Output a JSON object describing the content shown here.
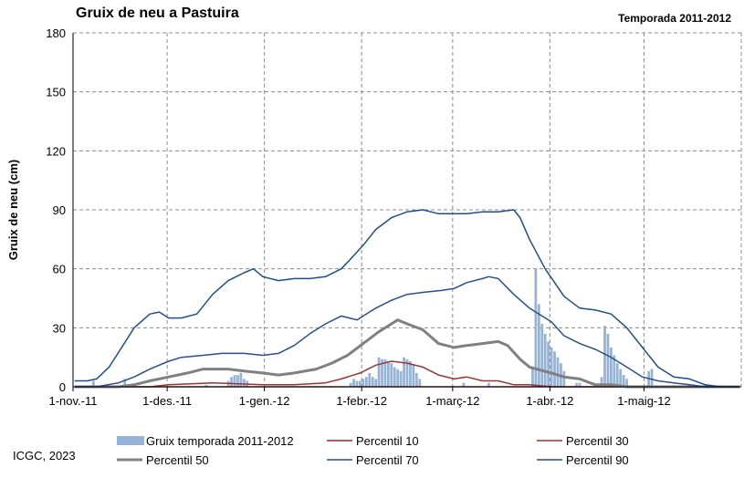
{
  "chart_data": {
    "type": "line",
    "title": "Gruix de neu a Pastuira",
    "subtitle": "Temporada 2011-2012",
    "ylabel": "Gruix de neu (cm)",
    "xlabel": "",
    "ylim": [
      0,
      180
    ],
    "yticks": [
      0,
      30,
      60,
      90,
      120,
      150,
      180
    ],
    "x_start": "2011-11-01",
    "x_end": "2012-05-31",
    "x_tick_labels": [
      "1-nov.-11",
      "1-des.-11",
      "1-gen.-12",
      "1-febr.-12",
      "1-març-12",
      "1-abr.-12",
      "1-maig-12"
    ],
    "x_tick_dates": [
      "2011-11-01",
      "2011-12-01",
      "2012-01-01",
      "2012-02-01",
      "2012-03-01",
      "2012-04-01",
      "2012-05-01"
    ],
    "grid": true,
    "legend_position": "bottom",
    "bars": {
      "name": "Gruix temporada 2011-2012",
      "color": "#94b3d6",
      "points": [
        [
          "2011-11-07",
          3
        ],
        [
          "2011-11-17",
          4
        ],
        [
          "2011-12-13",
          1
        ],
        [
          "2011-12-20",
          3
        ],
        [
          "2011-12-21",
          5
        ],
        [
          "2011-12-22",
          6
        ],
        [
          "2011-12-23",
          6
        ],
        [
          "2011-12-24",
          7
        ],
        [
          "2011-12-25",
          4
        ],
        [
          "2011-12-26",
          3
        ],
        [
          "2012-01-28",
          2
        ],
        [
          "2012-01-29",
          4
        ],
        [
          "2012-01-30",
          3
        ],
        [
          "2012-01-31",
          3
        ],
        [
          "2012-02-01",
          4
        ],
        [
          "2012-02-02",
          5
        ],
        [
          "2012-02-03",
          7
        ],
        [
          "2012-02-04",
          5
        ],
        [
          "2012-02-05",
          4
        ],
        [
          "2012-02-06",
          15
        ],
        [
          "2012-02-07",
          14
        ],
        [
          "2012-02-08",
          14
        ],
        [
          "2012-02-09",
          13
        ],
        [
          "2012-02-10",
          12
        ],
        [
          "2012-02-11",
          10
        ],
        [
          "2012-02-12",
          9
        ],
        [
          "2012-02-13",
          8
        ],
        [
          "2012-02-14",
          15
        ],
        [
          "2012-02-15",
          14
        ],
        [
          "2012-02-16",
          13
        ],
        [
          "2012-02-17",
          11
        ],
        [
          "2012-02-18",
          7
        ],
        [
          "2012-02-19",
          4
        ],
        [
          "2012-03-04",
          2
        ],
        [
          "2012-03-12",
          2
        ],
        [
          "2012-03-26",
          10
        ],
        [
          "2012-03-27",
          60
        ],
        [
          "2012-03-28",
          42
        ],
        [
          "2012-03-29",
          32
        ],
        [
          "2012-03-30",
          27
        ],
        [
          "2012-03-31",
          23
        ],
        [
          "2012-04-01",
          20
        ],
        [
          "2012-04-02",
          18
        ],
        [
          "2012-04-03",
          15
        ],
        [
          "2012-04-04",
          12
        ],
        [
          "2012-04-05",
          8
        ],
        [
          "2012-04-09",
          2
        ],
        [
          "2012-04-10",
          2
        ],
        [
          "2012-04-15",
          1
        ],
        [
          "2012-04-16",
          1
        ],
        [
          "2012-04-17",
          5
        ],
        [
          "2012-04-18",
          31
        ],
        [
          "2012-04-19",
          27
        ],
        [
          "2012-04-20",
          20
        ],
        [
          "2012-04-21",
          16
        ],
        [
          "2012-04-22",
          12
        ],
        [
          "2012-04-23",
          9
        ],
        [
          "2012-04-24",
          6
        ],
        [
          "2012-04-25",
          4
        ],
        [
          "2012-05-02",
          8
        ],
        [
          "2012-05-03",
          9
        ]
      ]
    },
    "series": [
      {
        "name": "Percentil 10",
        "color": "#8b2a2a",
        "width": 1.5,
        "points": [
          [
            "2011-11-01",
            0
          ],
          [
            "2012-05-31",
            0
          ]
        ]
      },
      {
        "name": "Percentil 30",
        "color": "#953735",
        "width": 1.5,
        "points": [
          [
            "2011-11-01",
            0
          ],
          [
            "2011-11-25",
            0
          ],
          [
            "2011-12-01",
            1
          ],
          [
            "2011-12-15",
            2
          ],
          [
            "2011-12-31",
            1
          ],
          [
            "2012-01-10",
            1
          ],
          [
            "2012-01-20",
            2
          ],
          [
            "2012-01-25",
            4
          ],
          [
            "2012-01-31",
            7
          ],
          [
            "2012-02-05",
            11
          ],
          [
            "2012-02-10",
            13
          ],
          [
            "2012-02-15",
            12
          ],
          [
            "2012-02-20",
            10
          ],
          [
            "2012-02-25",
            6
          ],
          [
            "2012-03-01",
            4
          ],
          [
            "2012-03-05",
            5
          ],
          [
            "2012-03-10",
            3
          ],
          [
            "2012-03-15",
            3
          ],
          [
            "2012-03-20",
            1
          ],
          [
            "2012-03-25",
            1
          ],
          [
            "2012-04-01",
            0
          ],
          [
            "2012-05-31",
            0
          ]
        ]
      },
      {
        "name": "Percentil 50",
        "color": "#808080",
        "width": 3,
        "points": [
          [
            "2011-11-01",
            0
          ],
          [
            "2011-11-15",
            0
          ],
          [
            "2011-11-20",
            1
          ],
          [
            "2011-11-25",
            3
          ],
          [
            "2011-12-01",
            5
          ],
          [
            "2011-12-07",
            7
          ],
          [
            "2011-12-12",
            9
          ],
          [
            "2011-12-20",
            9
          ],
          [
            "2011-12-25",
            8
          ],
          [
            "2011-12-31",
            7
          ],
          [
            "2012-01-05",
            6
          ],
          [
            "2012-01-10",
            7
          ],
          [
            "2012-01-17",
            9
          ],
          [
            "2012-01-22",
            12
          ],
          [
            "2012-01-27",
            16
          ],
          [
            "2012-02-01",
            22
          ],
          [
            "2012-02-06",
            28
          ],
          [
            "2012-02-10",
            32
          ],
          [
            "2012-02-12",
            34
          ],
          [
            "2012-02-15",
            32
          ],
          [
            "2012-02-20",
            29
          ],
          [
            "2012-02-25",
            22
          ],
          [
            "2012-03-01",
            20
          ],
          [
            "2012-03-05",
            21
          ],
          [
            "2012-03-10",
            22
          ],
          [
            "2012-03-15",
            23
          ],
          [
            "2012-03-18",
            21
          ],
          [
            "2012-03-22",
            14
          ],
          [
            "2012-03-25",
            10
          ],
          [
            "2012-04-01",
            7
          ],
          [
            "2012-04-05",
            5
          ],
          [
            "2012-04-10",
            4
          ],
          [
            "2012-04-15",
            1
          ],
          [
            "2012-04-20",
            1
          ],
          [
            "2012-04-25",
            0
          ],
          [
            "2012-05-31",
            0
          ]
        ]
      },
      {
        "name": "Percentil 70",
        "color": "#2a4f8a",
        "width": 1.5,
        "points": [
          [
            "2011-11-01",
            0
          ],
          [
            "2011-11-08",
            0
          ],
          [
            "2011-11-15",
            2
          ],
          [
            "2011-11-20",
            5
          ],
          [
            "2011-11-25",
            9
          ],
          [
            "2011-12-01",
            13
          ],
          [
            "2011-12-05",
            15
          ],
          [
            "2011-12-12",
            16
          ],
          [
            "2011-12-18",
            17
          ],
          [
            "2011-12-25",
            17
          ],
          [
            "2011-12-31",
            16
          ],
          [
            "2012-01-05",
            17
          ],
          [
            "2012-01-10",
            21
          ],
          [
            "2012-01-15",
            27
          ],
          [
            "2012-01-20",
            32
          ],
          [
            "2012-01-25",
            36
          ],
          [
            "2012-01-30",
            34
          ],
          [
            "2012-02-01",
            36
          ],
          [
            "2012-02-05",
            40
          ],
          [
            "2012-02-10",
            44
          ],
          [
            "2012-02-15",
            47
          ],
          [
            "2012-02-20",
            48
          ],
          [
            "2012-02-26",
            49
          ],
          [
            "2012-03-01",
            50
          ],
          [
            "2012-03-05",
            53
          ],
          [
            "2012-03-10",
            55
          ],
          [
            "2012-03-12",
            56
          ],
          [
            "2012-03-15",
            55
          ],
          [
            "2012-03-20",
            47
          ],
          [
            "2012-03-25",
            40
          ],
          [
            "2012-04-01",
            33
          ],
          [
            "2012-04-05",
            26
          ],
          [
            "2012-04-10",
            22
          ],
          [
            "2012-04-15",
            19
          ],
          [
            "2012-04-20",
            15
          ],
          [
            "2012-04-25",
            10
          ],
          [
            "2012-04-30",
            5
          ],
          [
            "2012-05-05",
            3
          ],
          [
            "2012-05-10",
            2
          ],
          [
            "2012-05-15",
            1
          ],
          [
            "2012-05-20",
            0
          ],
          [
            "2012-05-31",
            0
          ]
        ]
      },
      {
        "name": "Percentil 90",
        "color": "#1f4e8c",
        "width": 1.5,
        "points": [
          [
            "2011-11-01",
            3
          ],
          [
            "2011-11-05",
            3
          ],
          [
            "2011-11-08",
            4
          ],
          [
            "2011-11-12",
            10
          ],
          [
            "2011-11-16",
            20
          ],
          [
            "2011-11-20",
            30
          ],
          [
            "2011-11-25",
            37
          ],
          [
            "2011-11-28",
            38
          ],
          [
            "2011-12-01",
            35
          ],
          [
            "2011-12-05",
            35
          ],
          [
            "2011-12-10",
            37
          ],
          [
            "2011-12-15",
            47
          ],
          [
            "2011-12-20",
            54
          ],
          [
            "2011-12-25",
            58
          ],
          [
            "2011-12-28",
            60
          ],
          [
            "2011-12-31",
            56
          ],
          [
            "2012-01-05",
            54
          ],
          [
            "2012-01-10",
            55
          ],
          [
            "2012-01-15",
            55
          ],
          [
            "2012-01-20",
            56
          ],
          [
            "2012-01-25",
            60
          ],
          [
            "2012-01-28",
            65
          ],
          [
            "2012-02-01",
            72
          ],
          [
            "2012-02-05",
            80
          ],
          [
            "2012-02-10",
            86
          ],
          [
            "2012-02-15",
            89
          ],
          [
            "2012-02-20",
            90
          ],
          [
            "2012-02-25",
            88
          ],
          [
            "2012-03-01",
            88
          ],
          [
            "2012-03-05",
            88
          ],
          [
            "2012-03-10",
            89
          ],
          [
            "2012-03-15",
            89
          ],
          [
            "2012-03-20",
            90
          ],
          [
            "2012-03-22",
            86
          ],
          [
            "2012-03-25",
            75
          ],
          [
            "2012-03-30",
            60
          ],
          [
            "2012-04-05",
            46
          ],
          [
            "2012-04-10",
            40
          ],
          [
            "2012-04-15",
            39
          ],
          [
            "2012-04-20",
            37
          ],
          [
            "2012-04-25",
            30
          ],
          [
            "2012-04-30",
            20
          ],
          [
            "2012-05-05",
            10
          ],
          [
            "2012-05-10",
            5
          ],
          [
            "2012-05-15",
            4
          ],
          [
            "2012-05-20",
            1
          ],
          [
            "2012-05-25",
            0
          ],
          [
            "2012-05-31",
            0
          ]
        ]
      }
    ],
    "legend": [
      "Gruix temporada 2011-2012",
      "Percentil 10",
      "Percentil 30",
      "Percentil 50",
      "Percentil 70",
      "Percentil 90"
    ]
  },
  "footer": {
    "credit": "ICGC, 2023"
  }
}
